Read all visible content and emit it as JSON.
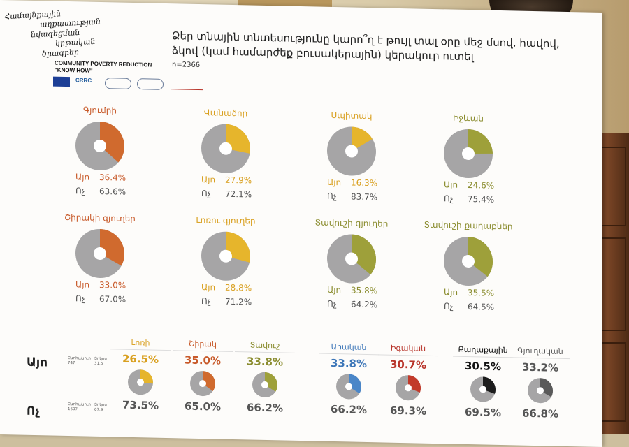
{
  "logo": {
    "script_lines": [
      "Համայնքային",
      "աղքատության",
      "նվազեցման",
      "կրթական",
      "ծրագրեր"
    ],
    "project_line1": "COMMUNITY POVERTY REDUCTION",
    "project_line2": "\"KNOW HOW\"",
    "partners": [
      "EU",
      "CRRC",
      "partner-3",
      "partner-4",
      "partner-5"
    ]
  },
  "survey": {
    "title": "Ձեր տնային տնտեսությունը կարո՞ղ է թույլ տալ օրը մեջ մսով, հավով, ձկով (կամ համարժեք բուսակերային) կերակուր ուտել",
    "n": "n=2366"
  },
  "labels": {
    "yes": "Այո",
    "no": "Ոչ"
  },
  "colors": {
    "grey": "#a6a5a6",
    "orange": "#d06a2e",
    "amber": "#e6b52c",
    "olive": "#9ea03a",
    "blue": "#4a86c8",
    "red": "#c23a2a",
    "black": "#1c1c1c",
    "darkgrey": "#5a5a5a"
  },
  "pies": [
    {
      "name": "Գյումրի",
      "yes": "36.4%",
      "no": "63.6%",
      "yes_value": 36.4,
      "color": "orange",
      "text_color": "#c85a2a"
    },
    {
      "name": "Վանաձոր",
      "yes": "27.9%",
      "no": "72.1%",
      "yes_value": 27.9,
      "color": "amber",
      "text_color": "#d9a020"
    },
    {
      "name": "Սպիտակ",
      "yes": "16.3%",
      "no": "83.7%",
      "yes_value": 16.3,
      "color": "amber",
      "text_color": "#d9a020"
    },
    {
      "name": "Իջևան",
      "yes": "24.6%",
      "no": "75.4%",
      "yes_value": 24.6,
      "color": "olive",
      "text_color": "#8a8c2e"
    },
    {
      "name": "Շիրակի գյուղեր",
      "yes": "33.0%",
      "no": "67.0%",
      "yes_value": 33.0,
      "color": "orange",
      "text_color": "#c85a2a"
    },
    {
      "name": "Լոռու գյուղեր",
      "yes": "28.8%",
      "no": "71.2%",
      "yes_value": 28.8,
      "color": "amber",
      "text_color": "#d9a020"
    },
    {
      "name": "Տավուշի գյուղեր",
      "yes": "35.8%",
      "no": "64.2%",
      "yes_value": 35.8,
      "color": "olive",
      "text_color": "#8a8c2e"
    },
    {
      "name": "Տավուշի քաղաքներ",
      "yes": "35.5%",
      "no": "64.5%",
      "yes_value": 35.5,
      "color": "olive",
      "text_color": "#8a8c2e"
    }
  ],
  "bottom": {
    "yes_label": "Այո",
    "no_label": "Ոչ",
    "yes_note_a": "Ընդհանուր",
    "yes_note_a_val": "747",
    "yes_note_b": "Տոկոս",
    "yes_note_b_val": "31.6",
    "no_note_a": "Ընդհանուր",
    "no_note_a_val": "1607",
    "no_note_b": "Տոկոս",
    "no_note_b_val": "67.9",
    "columns": [
      {
        "name": "Լոռի",
        "yes": "26.5%",
        "no": "73.5%",
        "yes_value": 26.5,
        "color": "amber",
        "text_color": "#d9a020"
      },
      {
        "name": "Շիրակ",
        "yes": "35.0%",
        "no": "65.0%",
        "yes_value": 35.0,
        "color": "orange",
        "text_color": "#c85a2a"
      },
      {
        "name": "Տավուշ",
        "yes": "33.8%",
        "no": "66.2%",
        "yes_value": 33.8,
        "color": "olive",
        "text_color": "#8a8c2e"
      },
      {
        "name": "Արական",
        "yes": "33.8%",
        "no": "66.2%",
        "yes_value": 33.8,
        "color": "blue",
        "text_color": "#3c76b8"
      },
      {
        "name": "Իգական",
        "yes": "30.7%",
        "no": "69.3%",
        "yes_value": 30.7,
        "color": "red",
        "text_color": "#b8342a"
      },
      {
        "name": "Քաղաքային",
        "yes": "30.5%",
        "no": "69.5%",
        "yes_value": 30.5,
        "color": "black",
        "text_color": "#111111"
      },
      {
        "name": "Գյուղական",
        "yes": "33.2%",
        "no": "66.8%",
        "yes_value": 33.2,
        "color": "darkgrey",
        "text_color": "#555555"
      }
    ]
  }
}
